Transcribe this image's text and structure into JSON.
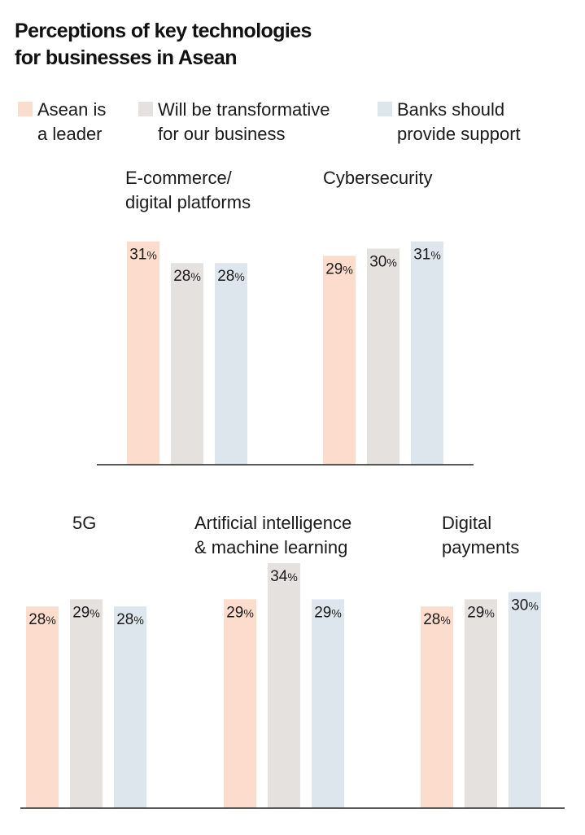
{
  "title_line1": "Perceptions of key technologies",
  "title_line2": "for businesses in Asean",
  "colors": {
    "asean": "#fbdccd",
    "transform": "#e4e1df",
    "banks": "#dde6ec",
    "axis": "#222222",
    "text": "#1a1a1a"
  },
  "legend": [
    {
      "line1": "Asean is",
      "line2": "a leader",
      "color": "#fbdccd"
    },
    {
      "line1": "Will be transformative",
      "line2": "for our business",
      "color": "#e4e1df"
    },
    {
      "line1": "Banks should",
      "line2": "provide support",
      "color": "#dde6ec"
    }
  ],
  "value_suffix": "%",
  "chart_data": {
    "type": "bar",
    "series": [
      {
        "name": "Asean is a leader",
        "values": [
          31,
          29,
          28,
          29,
          28
        ]
      },
      {
        "name": "Will be transformative for our business",
        "values": [
          28,
          30,
          29,
          34,
          29
        ]
      },
      {
        "name": "Banks should provide support",
        "values": [
          28,
          31,
          28,
          29,
          30
        ]
      }
    ],
    "categories": [
      "E-commerce/ digital platforms",
      "Cybersecurity",
      "5G",
      "Artificial intelligence & machine learning",
      "Digital payments"
    ],
    "groups": [
      {
        "label_lines": [
          "E-commerce/",
          "digital platforms"
        ],
        "values": [
          31,
          28,
          28
        ]
      },
      {
        "label_lines": [
          "Cybersecurity"
        ],
        "values": [
          29,
          30,
          31
        ]
      },
      {
        "label_lines": [
          "5G"
        ],
        "values": [
          28,
          29,
          28
        ]
      },
      {
        "label_lines": [
          "Artificial intelligence",
          "& machine learning"
        ],
        "values": [
          29,
          34,
          29
        ]
      },
      {
        "label_lines": [
          "Digital",
          "payments"
        ],
        "values": [
          28,
          29,
          30
        ]
      }
    ],
    "title": "Perceptions of key technologies for businesses in Asean",
    "xlabel": "",
    "ylabel": "",
    "unit": "%"
  }
}
